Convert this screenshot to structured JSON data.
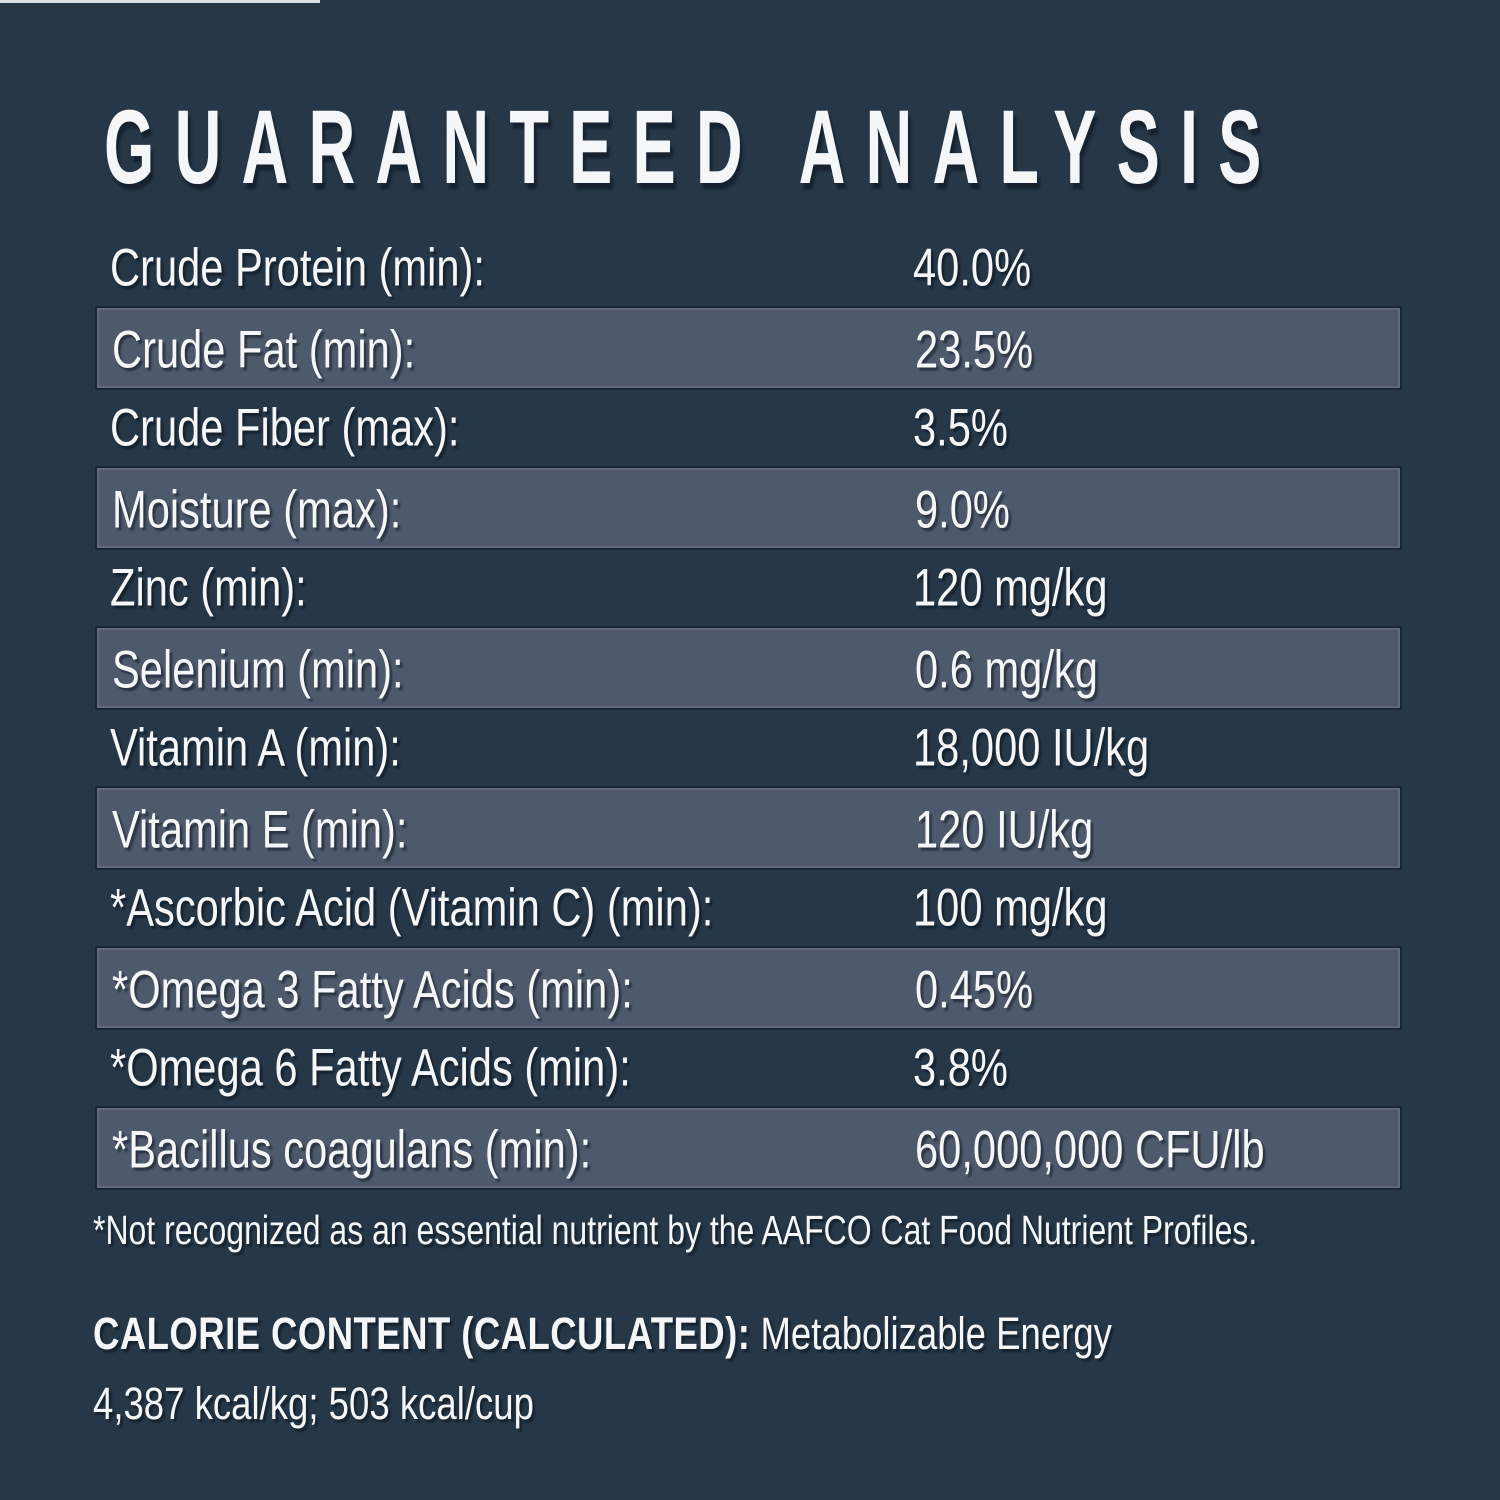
{
  "title": "GUARANTEED ANALYSIS",
  "table": {
    "rows": [
      {
        "label": "Crude Protein (min):",
        "value": "40.0%",
        "striped": false
      },
      {
        "label": "Crude Fat (min):",
        "value": "23.5%",
        "striped": true
      },
      {
        "label": "Crude Fiber (max):",
        "value": "3.5%",
        "striped": false
      },
      {
        "label": "Moisture (max):",
        "value": "9.0%",
        "striped": true
      },
      {
        "label": "Zinc (min):",
        "value": "120 mg/kg",
        "striped": false
      },
      {
        "label": "Selenium (min):",
        "value": "0.6 mg/kg",
        "striped": true
      },
      {
        "label": "Vitamin A (min):",
        "value": "18,000 IU/kg",
        "striped": false
      },
      {
        "label": "Vitamin E (min):",
        "value": "120 IU/kg",
        "striped": true
      },
      {
        "label": "*Ascorbic Acid (Vitamin C) (min):",
        "value": "100 mg/kg",
        "striped": false
      },
      {
        "label": "*Omega 3 Fatty Acids (min):",
        "value": "0.45%",
        "striped": true
      },
      {
        "label": "*Omega 6 Fatty Acids (min):",
        "value": "3.8%",
        "striped": false
      },
      {
        "label": "*Bacillus coagulans (min):",
        "value": "60,000,000 CFU/lb",
        "striped": true
      }
    ]
  },
  "footnote": "*Not recognized as an essential nutrient by the AAFCO Cat Food Nutrient Profiles.",
  "calorie": {
    "heading_bold": "CALORIE CONTENT (CALCULATED):",
    "heading_regular": "Metabolizable Energy",
    "values_line": "4,387 kcal/kg; 503 kcal/cup"
  },
  "colors": {
    "background": "#263747",
    "stripe": "#4e596b",
    "stripe-edge": "#5f6b7c",
    "text": "#f4f6f8",
    "top-edge": "#ffffff"
  }
}
